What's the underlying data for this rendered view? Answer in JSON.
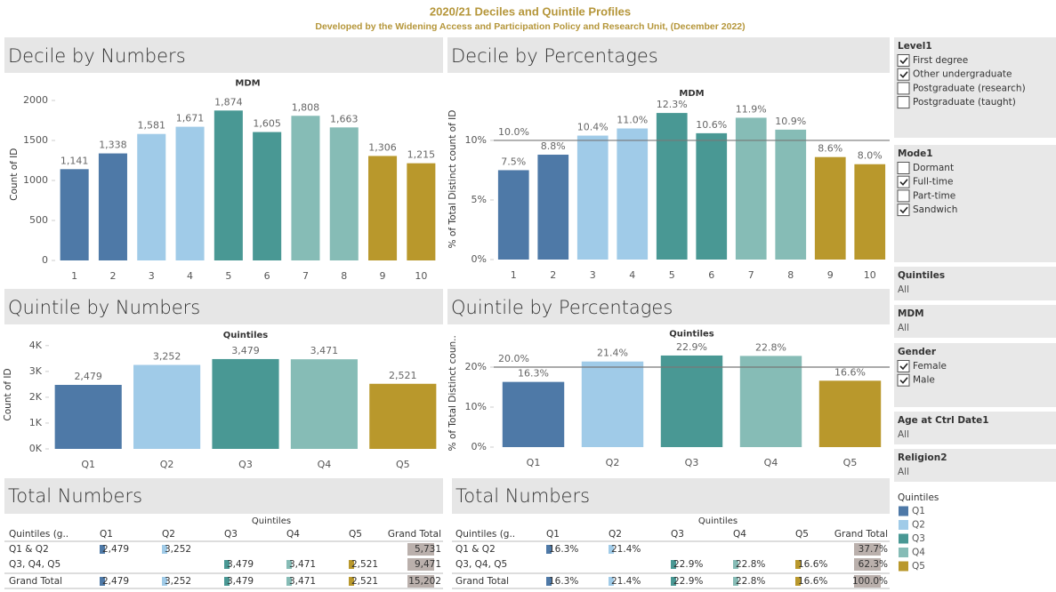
{
  "header": {
    "title": "2020/21 Deciles and Quintile Profiles",
    "subtitle": "Developed by the Widening Access and Participation Policy and Research Unit, (December 2022)"
  },
  "chart_data": [
    {
      "type": "bar",
      "title": "Decile by Numbers",
      "subtitle": "MDM",
      "y_label": "Count of ID",
      "categories": [
        "1",
        "2",
        "3",
        "4",
        "5",
        "6",
        "7",
        "8",
        "9",
        "10"
      ],
      "values": [
        1141,
        1338,
        1581,
        1671,
        1874,
        1605,
        1808,
        1663,
        1306,
        1215
      ],
      "value_labels": [
        "1,141",
        "1,338",
        "1,581",
        "1,671",
        "1,874",
        "1,605",
        "1,808",
        "1,663",
        "1,306",
        "1,215"
      ],
      "colors": [
        "#4e79a7",
        "#4e79a7",
        "#a0cbe8",
        "#a0cbe8",
        "#499894",
        "#499894",
        "#86bcb6",
        "#86bcb6",
        "#b9982c",
        "#b9982c"
      ],
      "ylim": [
        0,
        2150
      ],
      "yticks": [
        0,
        500,
        1000,
        1500,
        2000
      ]
    },
    {
      "type": "bar",
      "title": "Decile by Percentages",
      "subtitle": "MDM",
      "y_label": "% of Total Distinct count of ID",
      "categories": [
        "1",
        "2",
        "3",
        "4",
        "5",
        "6",
        "7",
        "8",
        "9",
        "10"
      ],
      "values": [
        7.5,
        8.8,
        10.4,
        11.0,
        12.3,
        10.6,
        11.9,
        10.9,
        8.6,
        8.0
      ],
      "value_labels": [
        "7.5%",
        "8.8%",
        "10.4%",
        "11.0%",
        "12.3%",
        "10.6%",
        "11.9%",
        "10.9%",
        "8.6%",
        "8.0%"
      ],
      "colors": [
        "#4e79a7",
        "#4e79a7",
        "#a0cbe8",
        "#a0cbe8",
        "#499894",
        "#499894",
        "#86bcb6",
        "#86bcb6",
        "#b9982c",
        "#b9982c"
      ],
      "ylim": [
        0,
        13.5
      ],
      "yticks": [
        {
          "value": 0,
          "label": "0%"
        },
        {
          "value": 5,
          "label": "5%"
        },
        {
          "value": 10,
          "label": "10%"
        }
      ],
      "reference_line": {
        "value": 10,
        "label": "10.0%"
      }
    },
    {
      "type": "bar",
      "title": "Quintile by Numbers",
      "subtitle": "Quintiles",
      "y_label": "Count of ID",
      "categories": [
        "Q1",
        "Q2",
        "Q3",
        "Q4",
        "Q5"
      ],
      "values": [
        2479,
        3252,
        3479,
        3471,
        2521
      ],
      "value_labels": [
        "2,479",
        "3,252",
        "3,479",
        "3,471",
        "2,521"
      ],
      "colors": [
        "#4e79a7",
        "#a0cbe8",
        "#499894",
        "#86bcb6",
        "#b9982c"
      ],
      "ylim": [
        0,
        4200
      ],
      "yticks": [
        {
          "value": 0,
          "label": "0K"
        },
        {
          "value": 1000,
          "label": "1K"
        },
        {
          "value": 2000,
          "label": "2K"
        },
        {
          "value": 3000,
          "label": "3K"
        },
        {
          "value": 4000,
          "label": "4K"
        }
      ]
    },
    {
      "type": "bar",
      "title": "Quintile by Percentages",
      "subtitle": "Quintiles",
      "y_label": "% of Total Distinct coun..",
      "categories": [
        "Q1",
        "Q2",
        "Q3",
        "Q4",
        "Q5"
      ],
      "values": [
        16.3,
        21.4,
        22.9,
        22.8,
        16.6
      ],
      "value_labels": [
        "16.3%",
        "21.4%",
        "22.9%",
        "22.8%",
        "16.6%"
      ],
      "colors": [
        "#4e79a7",
        "#a0cbe8",
        "#499894",
        "#86bcb6",
        "#b9982c"
      ],
      "ylim": [
        0,
        27
      ],
      "yticks": [
        {
          "value": 0,
          "label": "0%"
        },
        {
          "value": 10,
          "label": "10%"
        },
        {
          "value": 20,
          "label": "20%"
        }
      ],
      "reference_line": {
        "value": 20,
        "label": "20.0%"
      }
    }
  ],
  "tables": [
    {
      "title": "Total Numbers",
      "group_label": "Quintiles",
      "columns": [
        "Quintiles (g..",
        "Q1",
        "Q2",
        "Q3",
        "Q4",
        "Q5",
        "Grand Total"
      ],
      "rows": [
        [
          "Q1 & Q2",
          "2,479",
          "3,252",
          null,
          null,
          null,
          "5,731"
        ],
        [
          "Q3, Q4, Q5",
          null,
          null,
          "3,479",
          "3,471",
          "2,521",
          "9,471"
        ],
        [
          "Grand Total",
          "2,479",
          "3,252",
          "3,479",
          "3,471",
          "2,521",
          "15,202"
        ]
      ]
    },
    {
      "title": "Total Numbers",
      "group_label": "Quintiles",
      "columns": [
        "Quintiles (g..",
        "Q1",
        "Q2",
        "Q3",
        "Q4",
        "Q5",
        "Grand Total"
      ],
      "rows": [
        [
          "Q1 & Q2",
          "16.3%",
          "21.4%",
          null,
          null,
          null,
          "37.7%"
        ],
        [
          "Q3, Q4, Q5",
          null,
          null,
          "22.9%",
          "22.8%",
          "16.6%",
          "62.3%"
        ],
        [
          "Grand Total",
          "16.3%",
          "21.4%",
          "22.9%",
          "22.8%",
          "16.6%",
          "100.0%"
        ]
      ]
    }
  ],
  "filters": [
    {
      "title": "Level1",
      "options": [
        {
          "label": "First degree",
          "checked": true
        },
        {
          "label": "Other undergraduate",
          "checked": true
        },
        {
          "label": "Postgraduate (research)",
          "checked": false
        },
        {
          "label": "Postgraduate (taught)",
          "checked": false
        }
      ]
    },
    {
      "title": "Mode1",
      "options": [
        {
          "label": "Dormant",
          "checked": false
        },
        {
          "label": "Full-time",
          "checked": true
        },
        {
          "label": "Part-time",
          "checked": false
        },
        {
          "label": "Sandwich",
          "checked": true
        }
      ]
    },
    {
      "title": "Quintiles",
      "value": "All"
    },
    {
      "title": "MDM",
      "value": "All"
    },
    {
      "title": "Gender",
      "options": [
        {
          "label": "Female",
          "checked": true
        },
        {
          "label": "Male",
          "checked": true
        }
      ]
    },
    {
      "title": "Age at Ctrl Date1",
      "value": "All"
    },
    {
      "title": "Religion2",
      "value": "All"
    }
  ],
  "legend": {
    "title": "Quintiles",
    "items": [
      {
        "label": "Q1",
        "color": "#4e79a7"
      },
      {
        "label": "Q2",
        "color": "#a0cbe8"
      },
      {
        "label": "Q3",
        "color": "#499894"
      },
      {
        "label": "Q4",
        "color": "#86bcb6"
      },
      {
        "label": "Q5",
        "color": "#b9982c"
      }
    ]
  }
}
